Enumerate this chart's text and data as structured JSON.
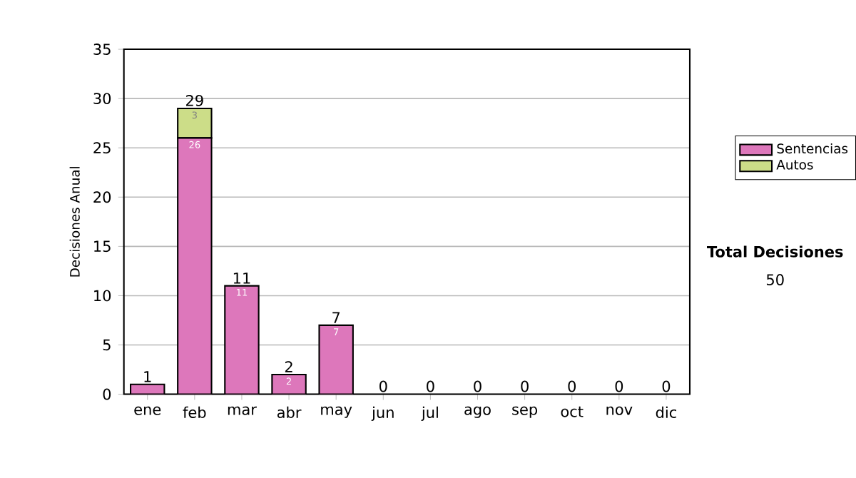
{
  "chart_data": {
    "type": "bar",
    "stacked": true,
    "ylabel": "Decisiones Anual",
    "categories": [
      "ene",
      "feb",
      "mar",
      "abr",
      "may",
      "jun",
      "jul",
      "ago",
      "sep",
      "oct",
      "nov",
      "dic"
    ],
    "series": [
      {
        "name": "Sentencias",
        "color": "#dd77bb",
        "values": [
          1,
          26,
          11,
          2,
          7,
          0,
          0,
          0,
          0,
          0,
          0,
          0
        ],
        "value_labels": [
          null,
          "26",
          "11",
          "2",
          "7",
          null,
          null,
          null,
          null,
          null,
          null,
          null
        ]
      },
      {
        "name": "Autos",
        "color": "#ccdd88",
        "values": [
          0,
          3,
          0,
          0,
          0,
          0,
          0,
          0,
          0,
          0,
          0,
          0
        ],
        "value_labels": [
          null,
          "3",
          null,
          null,
          null,
          null,
          null,
          null,
          null,
          null,
          null,
          null
        ]
      }
    ],
    "totals": [
      "1",
      "29",
      "11",
      "2",
      "7",
      "0",
      "0",
      "0",
      "0",
      "0",
      "0",
      "0"
    ],
    "ylim": [
      0,
      35
    ],
    "yticks": [
      0,
      5,
      10,
      15,
      20,
      25,
      30,
      35
    ],
    "grid": "y",
    "legend": "right",
    "annotations": [
      "Total Decisiones",
      "50"
    ]
  }
}
